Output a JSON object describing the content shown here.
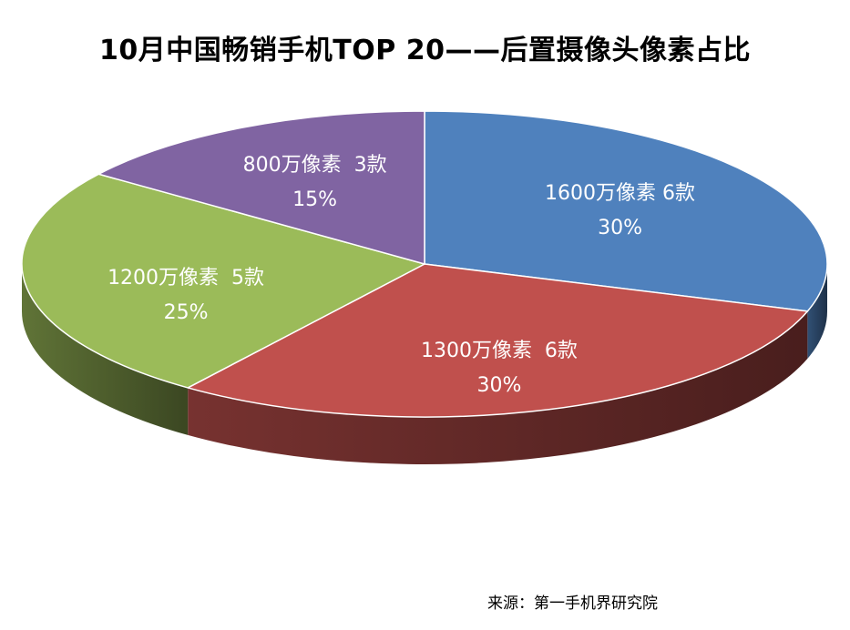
{
  "chart_data": {
    "type": "pie",
    "title": "10月中国畅销手机TOP 20——后置摄像头像素占比",
    "source": "来源：第一手机界研究院",
    "slices": [
      {
        "label": "1600万像素 6款",
        "percent_label": "30%",
        "value": 30,
        "color": "#4f81bd"
      },
      {
        "label": "1300万像素  6款",
        "percent_label": "30%",
        "value": 30,
        "color": "#c0504d"
      },
      {
        "label": "1200万像素  5款",
        "percent_label": "25%",
        "value": 25,
        "color": "#9bbb59"
      },
      {
        "label": "800万像素  3款",
        "percent_label": "15%",
        "value": 15,
        "color": "#8064a2"
      }
    ]
  }
}
